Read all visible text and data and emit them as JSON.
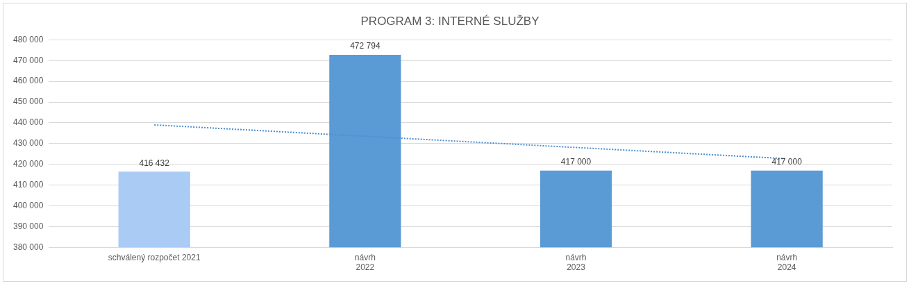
{
  "chart_data": {
    "type": "bar",
    "title": "PROGRAM 3: INTERNÉ SLUŽBY",
    "categories": [
      "schválený rozpočet 2021",
      "návrh\n2022",
      "návrh\n2023",
      "návrh\n2024"
    ],
    "series": [
      {
        "colors": [
          "#a9cbf4",
          "#5b9bd5",
          "#5b9bd5",
          "#5b9bd5"
        ],
        "values": [
          416432,
          472794,
          417000,
          417000
        ],
        "value_labels": [
          "416 432",
          "472 794",
          "417 000",
          "417 000"
        ]
      },
      {
        "type": "line",
        "color": "#4a8ed0",
        "values": [
          439000,
          433500,
          428100,
          422700
        ],
        "line_style": "dotted",
        "marker": "none"
      }
    ],
    "ylim": [
      380000,
      480000
    ],
    "yticks": [
      {
        "value": 380000,
        "label": "380 000"
      },
      {
        "value": 390000,
        "label": "390 000"
      },
      {
        "value": 400000,
        "label": "400 000"
      },
      {
        "value": 410000,
        "label": "410 000"
      },
      {
        "value": 420000,
        "label": "420 000"
      },
      {
        "value": 430000,
        "label": "430 000"
      },
      {
        "value": 440000,
        "label": "440 000"
      },
      {
        "value": 450000,
        "label": "450 000"
      },
      {
        "value": 460000,
        "label": "460 000"
      },
      {
        "value": 470000,
        "label": "470 000"
      },
      {
        "value": 480000,
        "label": "480 000"
      }
    ],
    "grid": "y"
  }
}
